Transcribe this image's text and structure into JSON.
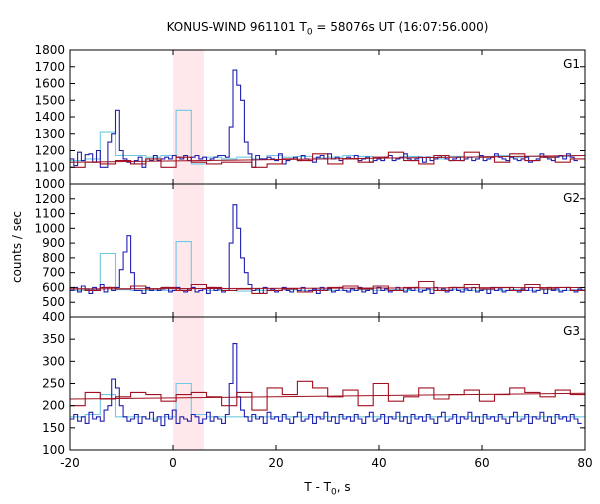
{
  "title": {
    "prefix": "KONUS-WIND 961101 T",
    "sub": "0",
    "suffix": " = 58076s UT (16:07:56.000)"
  },
  "xlabel": {
    "prefix": "T - T",
    "sub": "0",
    "suffix": ", s"
  },
  "ylabel": "counts / sec",
  "colors": {
    "light": "#6ecae4",
    "dark": "#2020b0",
    "red": "#a01020",
    "highlight": "#ffe8ec"
  },
  "chart_data": [
    {
      "type": "line",
      "panel_label": "G1",
      "xlim": [
        -20,
        80
      ],
      "ylim": [
        1000,
        1800
      ],
      "yticks": [
        1000,
        1100,
        1200,
        1300,
        1400,
        1500,
        1600,
        1700,
        1800
      ],
      "highlight": [
        0,
        6
      ],
      "series": [
        {
          "step": "light",
          "bin_start": -20,
          "bin_width": 2.944,
          "values": [
            1140,
            1150,
            1310,
            1170,
            1170,
            1160,
            1170,
            1440,
            1120,
            1160,
            1150,
            1160,
            1150,
            1170,
            1160,
            1165,
            1155,
            1160,
            1170,
            1165,
            1160,
            1155,
            1165,
            1160,
            1150,
            1165,
            1160,
            1165,
            1170,
            1160,
            1165,
            1160,
            1165,
            1170,
            1160
          ]
        },
        {
          "step": "dark",
          "bin_start": -20,
          "bin_width": 0.736,
          "values": [
            1150,
            1110,
            1190,
            1140,
            1175,
            1180,
            1130,
            1200,
            1100,
            1100,
            1250,
            1300,
            1440,
            1200,
            1150,
            1130,
            1120,
            1140,
            1160,
            1100,
            1150,
            1140,
            1170,
            1140,
            1150,
            1160,
            1150,
            1170,
            1160,
            1150,
            1170,
            1140,
            1160,
            1170,
            1150,
            1160,
            1140,
            1150,
            1160,
            1170,
            1170,
            1160,
            1340,
            1680,
            1590,
            1500,
            1250,
            1180,
            1100,
            1170,
            1150,
            1150,
            1160,
            1150,
            1140,
            1180,
            1120,
            1140,
            1150,
            1160,
            1140,
            1170,
            1150,
            1140,
            1130,
            1160,
            1170,
            1150,
            1180,
            1150,
            1160,
            1140,
            1150,
            1160,
            1150,
            1170,
            1140,
            1150,
            1160,
            1130,
            1140,
            1150,
            1140,
            1160,
            1170,
            1140,
            1150,
            1160,
            1180,
            1150,
            1140,
            1150,
            1160,
            1130,
            1160,
            1140,
            1150,
            1160,
            1170,
            1150,
            1140,
            1150,
            1160,
            1140,
            1150,
            1160,
            1140,
            1150,
            1170,
            1140,
            1150,
            1160,
            1180,
            1160,
            1150,
            1140,
            1160,
            1150,
            1140,
            1150,
            1160,
            1130,
            1140,
            1150,
            1180,
            1160,
            1150,
            1140,
            1160,
            1170,
            1150,
            1180,
            1160,
            1140
          ]
        },
        {
          "step": "red",
          "bin_start": -20,
          "bin_width": 2.944,
          "values": [
            1100,
            1130,
            1120,
            1140,
            1120,
            1150,
            1100,
            1160,
            1130,
            1120,
            1130,
            1130,
            1100,
            1120,
            1150,
            1140,
            1180,
            1120,
            1150,
            1130,
            1160,
            1190,
            1140,
            1120,
            1170,
            1140,
            1190,
            1160,
            1130,
            1180,
            1140,
            1160,
            1130,
            1150,
            1140
          ]
        },
        {
          "line": "red",
          "x": [
            -20,
            80
          ],
          "y": [
            1130,
            1170
          ]
        }
      ]
    },
    {
      "type": "line",
      "panel_label": "G2",
      "xlim": [
        -20,
        80
      ],
      "ylim": [
        400,
        1300
      ],
      "yticks": [
        400,
        500,
        600,
        700,
        800,
        900,
        1000,
        1100,
        1200
      ],
      "highlight": [
        0,
        6
      ],
      "series": [
        {
          "step": "light",
          "bin_start": -20,
          "bin_width": 2.944,
          "values": [
            580,
            585,
            830,
            585,
            580,
            580,
            580,
            910,
            620,
            580,
            580,
            575,
            580,
            580,
            585,
            580,
            585,
            580,
            580,
            585,
            580,
            585,
            580,
            585,
            580,
            585,
            580,
            585,
            580,
            585,
            580,
            585,
            580,
            585,
            580
          ]
        },
        {
          "step": "dark",
          "bin_start": -20,
          "bin_width": 0.736,
          "values": [
            580,
            600,
            570,
            610,
            590,
            560,
            600,
            580,
            620,
            570,
            600,
            580,
            600,
            720,
            840,
            950,
            700,
            580,
            580,
            560,
            600,
            580,
            590,
            580,
            590,
            600,
            570,
            580,
            600,
            580,
            570,
            590,
            600,
            570,
            580,
            590,
            560,
            600,
            580,
            590,
            570,
            580,
            900,
            1160,
            1000,
            800,
            700,
            620,
            580,
            590,
            560,
            600,
            580,
            590,
            570,
            580,
            600,
            580,
            570,
            590,
            580,
            600,
            570,
            580,
            590,
            560,
            600,
            580,
            590,
            570,
            580,
            600,
            580,
            570,
            590,
            580,
            600,
            570,
            580,
            590,
            560,
            600,
            580,
            590,
            570,
            580,
            600,
            580,
            570,
            590,
            580,
            600,
            570,
            580,
            590,
            560,
            600,
            580,
            590,
            570,
            580,
            600,
            580,
            570,
            590,
            580,
            600,
            570,
            580,
            590,
            560,
            600,
            580,
            590,
            570,
            580,
            600,
            580,
            570,
            590,
            580,
            600,
            570,
            580,
            590,
            560,
            600,
            580,
            590,
            570,
            580,
            600,
            580,
            570,
            590,
            580
          ]
        },
        {
          "step": "red",
          "bin_start": -20,
          "bin_width": 2.944,
          "values": [
            590,
            580,
            600,
            590,
            610,
            590,
            600,
            580,
            620,
            600,
            580,
            590,
            560,
            580,
            590,
            570,
            580,
            600,
            610,
            590,
            610,
            580,
            600,
            640,
            580,
            600,
            620,
            590,
            600,
            580,
            620,
            590,
            600,
            580,
            600
          ]
        },
        {
          "line": "red",
          "x": [
            -20,
            80
          ],
          "y": [
            590,
            600
          ]
        }
      ]
    },
    {
      "type": "line",
      "panel_label": "G3",
      "xlim": [
        -20,
        80
      ],
      "ylim": [
        100,
        400
      ],
      "yticks": [
        100,
        150,
        200,
        250,
        300,
        350
      ],
      "highlight": [
        0,
        6
      ],
      "series": [
        {
          "step": "light",
          "bin_start": -20,
          "bin_width": 2.944,
          "values": [
            175,
            180,
            225,
            175,
            175,
            170,
            175,
            250,
            180,
            175,
            175,
            175,
            175,
            175,
            175,
            175,
            175,
            175,
            175,
            175,
            175,
            175,
            175,
            175,
            175,
            175,
            175,
            175,
            175,
            175,
            175,
            175,
            175,
            175,
            175
          ]
        },
        {
          "step": "dark",
          "bin_start": -20,
          "bin_width": 0.736,
          "values": [
            170,
            180,
            165,
            175,
            160,
            185,
            170,
            175,
            165,
            190,
            200,
            260,
            240,
            200,
            175,
            165,
            170,
            180,
            160,
            175,
            170,
            185,
            165,
            175,
            155,
            180,
            170,
            190,
            160,
            175,
            170,
            165,
            180,
            175,
            160,
            170,
            185,
            165,
            175,
            170,
            160,
            180,
            250,
            340,
            220,
            190,
            175,
            165,
            180,
            170,
            175,
            160,
            185,
            170,
            175,
            165,
            180,
            170,
            160,
            175,
            185,
            165,
            170,
            180,
            160,
            175,
            170,
            185,
            165,
            175,
            160,
            180,
            170,
            175,
            165,
            180,
            170,
            160,
            175,
            185,
            165,
            170,
            180,
            160,
            175,
            170,
            185,
            165,
            175,
            160,
            180,
            170,
            175,
            165,
            180,
            170,
            160,
            175,
            185,
            165,
            170,
            180,
            160,
            175,
            170,
            185,
            165,
            175,
            160,
            180,
            170,
            175,
            165,
            180,
            170,
            160,
            175,
            185,
            165,
            170,
            180,
            160,
            175,
            170,
            185,
            165,
            175,
            160,
            180,
            170,
            175,
            165,
            180,
            170,
            160
          ]
        },
        {
          "step": "red",
          "bin_start": -20,
          "bin_width": 2.944,
          "values": [
            200,
            230,
            215,
            220,
            230,
            225,
            210,
            225,
            230,
            220,
            200,
            230,
            190,
            240,
            225,
            255,
            240,
            220,
            235,
            200,
            250,
            210,
            220,
            240,
            215,
            225,
            235,
            210,
            225,
            240,
            230,
            220,
            235,
            225,
            230
          ]
        },
        {
          "line": "red",
          "x": [
            -20,
            80
          ],
          "y": [
            215,
            228
          ]
        }
      ]
    }
  ],
  "shared_xticks": [
    -20,
    0,
    20,
    40,
    60,
    80
  ]
}
